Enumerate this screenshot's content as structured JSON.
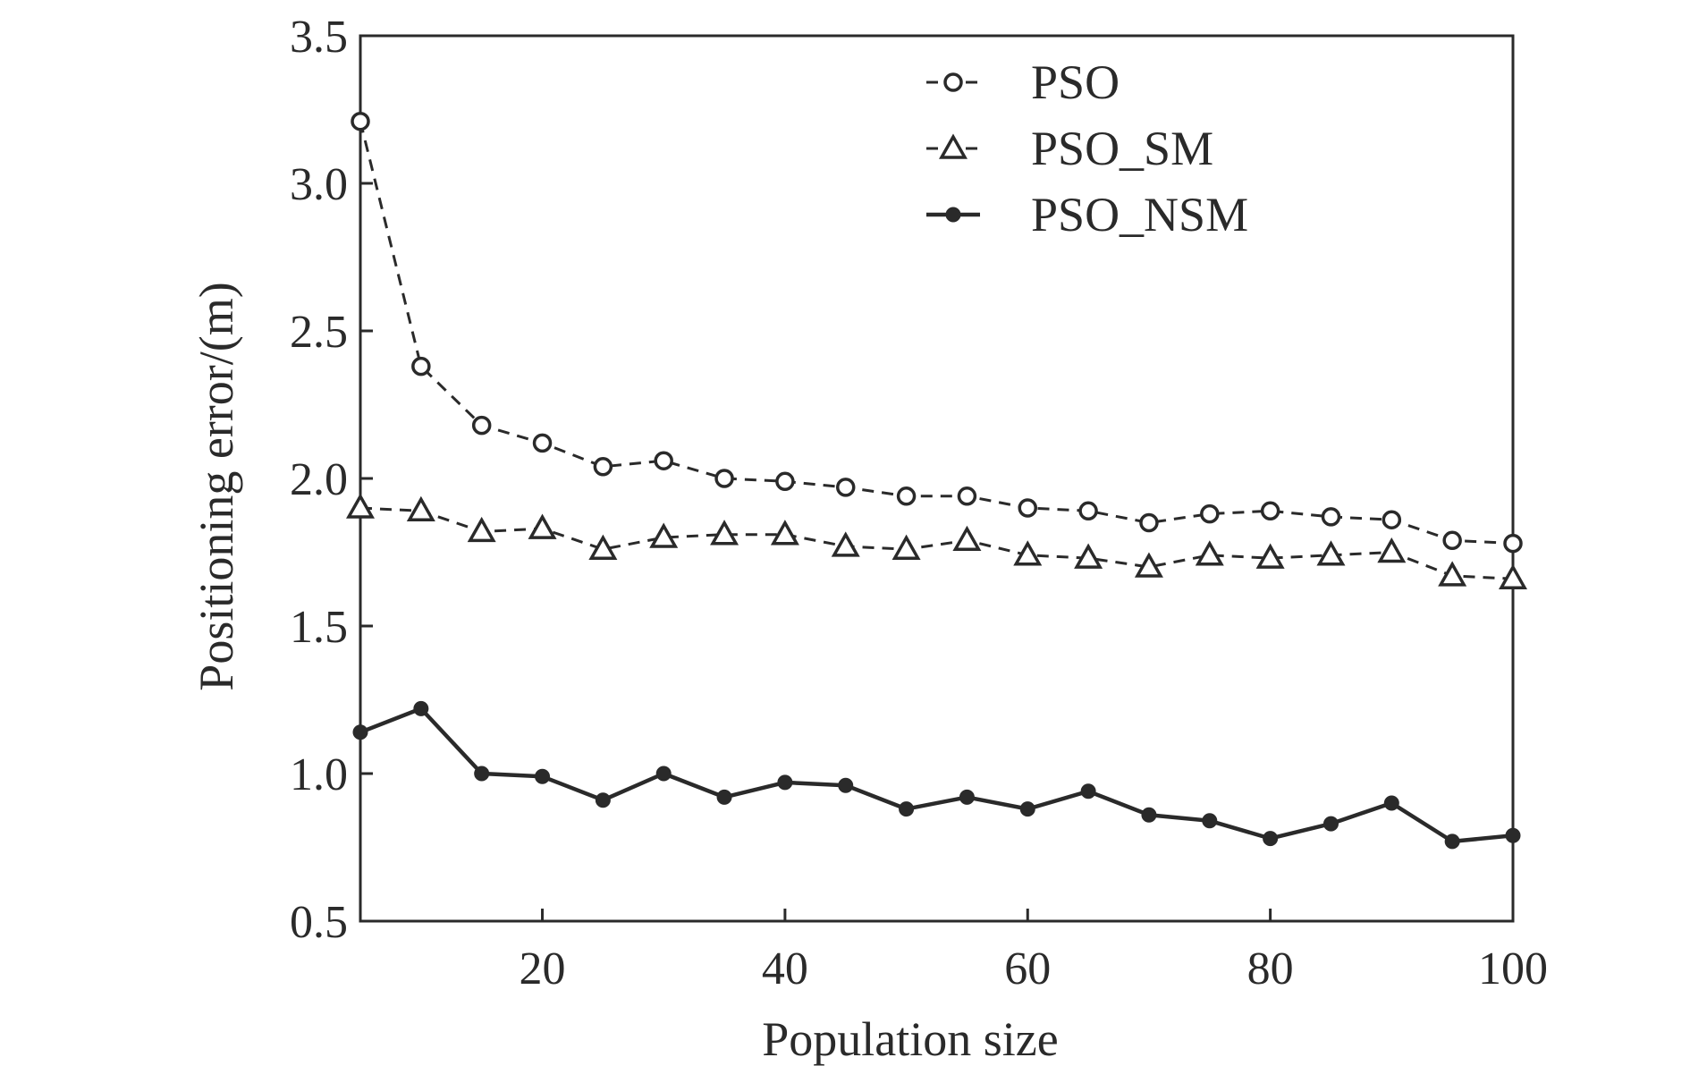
{
  "chart_data": {
    "type": "line",
    "title": "",
    "xlabel": "Population size",
    "ylabel": "Positioning error/(m)",
    "xlim": [
      5,
      100
    ],
    "ylim": [
      0.5,
      3.5
    ],
    "xticks": [
      20,
      40,
      60,
      80,
      100
    ],
    "xtick_labels": [
      "20",
      "40",
      "60",
      "80",
      "100"
    ],
    "yticks": [
      0.5,
      1.0,
      1.5,
      2.0,
      2.5,
      3.0,
      3.5
    ],
    "ytick_labels": [
      "0.5",
      "1.0",
      "1.5",
      "2.0",
      "2.5",
      "3.0",
      "3.5"
    ],
    "grid": false,
    "legend_position": "top-right",
    "x": [
      5,
      10,
      15,
      20,
      25,
      30,
      35,
      40,
      45,
      50,
      55,
      60,
      65,
      70,
      75,
      80,
      85,
      90,
      95,
      100
    ],
    "series": [
      {
        "name": "PSO",
        "line_style": "dashed",
        "marker": "circle",
        "color": "#2a2a2a",
        "values": [
          3.21,
          2.38,
          2.18,
          2.12,
          2.04,
          2.06,
          2.0,
          1.99,
          1.97,
          1.94,
          1.94,
          1.9,
          1.89,
          1.85,
          1.88,
          1.89,
          1.87,
          1.86,
          1.79,
          1.78
        ]
      },
      {
        "name": "PSO_SM",
        "line_style": "dashed",
        "marker": "triangle",
        "color": "#2a2a2a",
        "values": [
          1.9,
          1.89,
          1.82,
          1.83,
          1.76,
          1.8,
          1.81,
          1.81,
          1.77,
          1.76,
          1.79,
          1.74,
          1.73,
          1.7,
          1.74,
          1.73,
          1.74,
          1.75,
          1.67,
          1.66
        ]
      },
      {
        "name": "PSO_NSM",
        "line_style": "solid",
        "marker": "dot",
        "color": "#2a2a2a",
        "values": [
          1.14,
          1.22,
          1.0,
          0.99,
          0.91,
          1.0,
          0.92,
          0.97,
          0.96,
          0.88,
          0.92,
          0.88,
          0.94,
          0.86,
          0.84,
          0.78,
          0.83,
          0.9,
          0.77,
          0.79
        ]
      }
    ]
  }
}
